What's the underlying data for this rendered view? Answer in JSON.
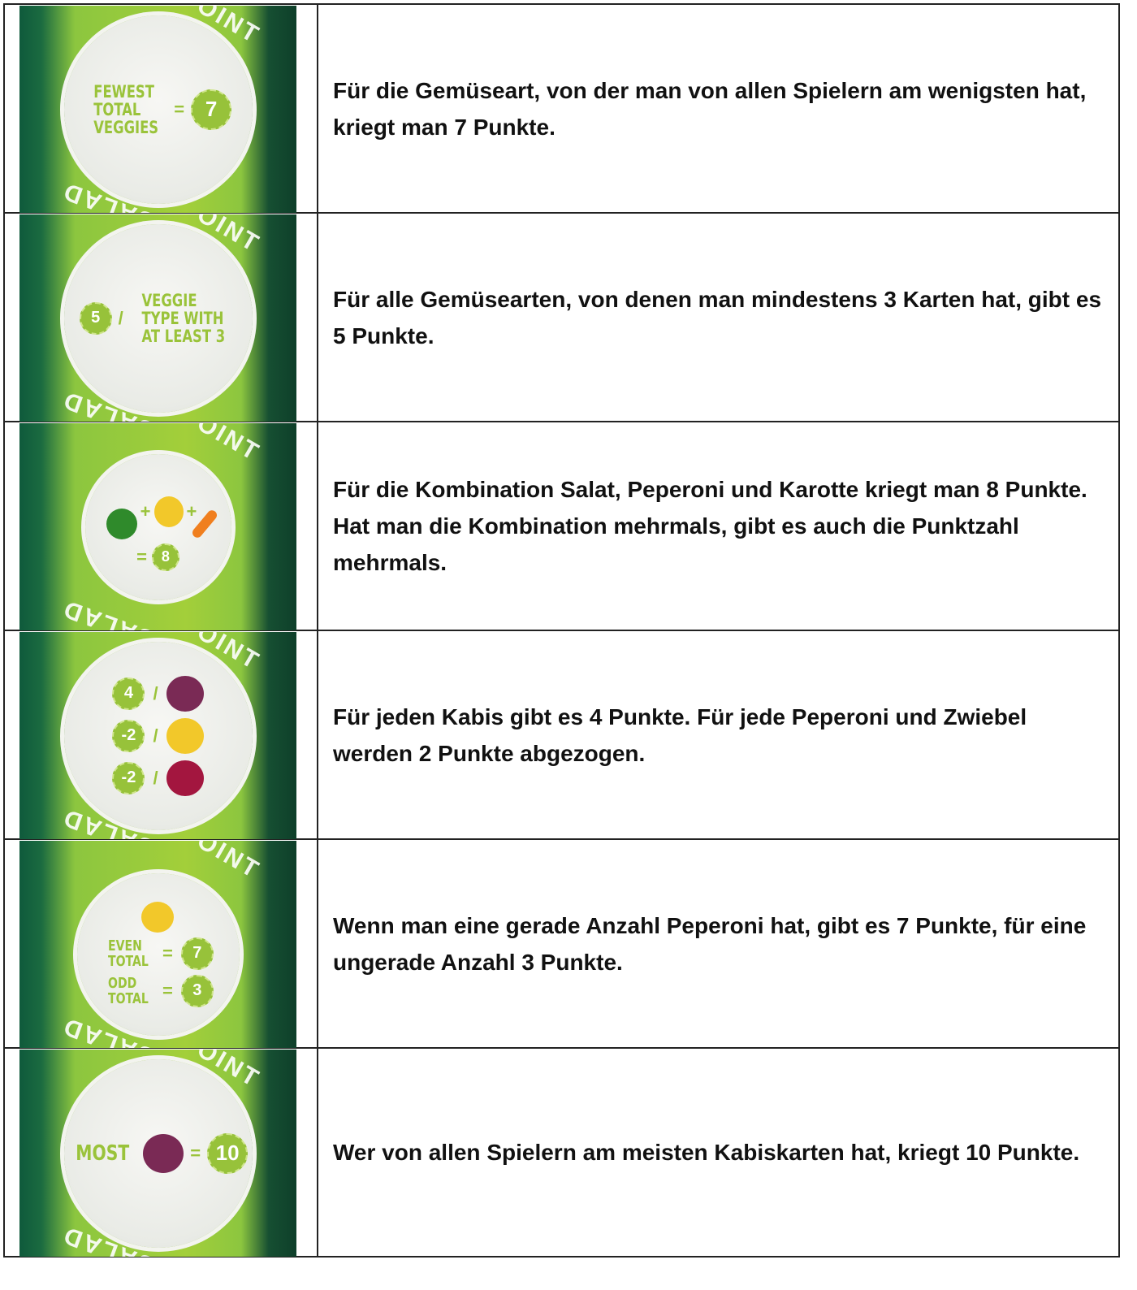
{
  "colors": {
    "card_green": "#a3cf3a",
    "number_badge": "#97c23a",
    "cabbage": "#7a2a55",
    "pepper": "#f2c82a",
    "onion": "#a3163f",
    "lettuce": "#2f8a2b",
    "carrot": "#f07f1e"
  },
  "card_labels": {
    "top": "POINT",
    "bottom": "SALAD"
  },
  "rows": [
    {
      "card": {
        "text": [
          "FEWEST",
          "TOTAL",
          "VEGGIES"
        ],
        "equals": "=",
        "value": "7"
      },
      "description": "Für die Gemüseart, von der man von allen Spielern am wenigsten hat, kriegt man 7 Punkte."
    },
    {
      "card": {
        "value": "5",
        "slash": "/",
        "text": [
          "VEGGIE",
          "TYPE WITH",
          "AT LEAST 3"
        ]
      },
      "description": "Für alle Gemüsearten, von denen man mindestens 3 Karten hat, gibt es 5 Punkte."
    },
    {
      "card": {
        "icons": [
          "lettuce-icon",
          "pepper-icon",
          "carrot-icon"
        ],
        "plus": "+",
        "equals": "=",
        "value": "8"
      },
      "description": "Für die Kombination Salat, Peperoni und Karotte kriegt man 8 Punkte. Hat man die Kombination mehrmals, gibt es auch die Punktzahl mehrmals."
    },
    {
      "card": {
        "lines": [
          {
            "value": "4",
            "icon": "cabbage-icon"
          },
          {
            "value": "-2",
            "icon": "pepper-icon"
          },
          {
            "value": "-2",
            "icon": "onion-icon"
          }
        ],
        "slash": "/"
      },
      "description": "Für jeden Kabis gibt es 4 Punkte. Für jede Peperoni und Zwiebel werden 2 Punkte abgezogen."
    },
    {
      "card": {
        "icon": "pepper-icon",
        "even": [
          "EVEN",
          "TOTAL"
        ],
        "even_value": "7",
        "odd": [
          "ODD",
          "TOTAL"
        ],
        "odd_value": "3",
        "equals": "="
      },
      "description": "Wenn man eine gerade Anzahl Peperoni hat, gibt es 7 Punkte, für eine ungerade Anzahl 3 Punkte."
    },
    {
      "card": {
        "text": "MOST",
        "icon": "cabbage-icon",
        "equals": "=",
        "value": "10"
      },
      "description": "Wer von allen Spielern am meisten Kabiskarten hat, kriegt 10 Punkte."
    }
  ]
}
